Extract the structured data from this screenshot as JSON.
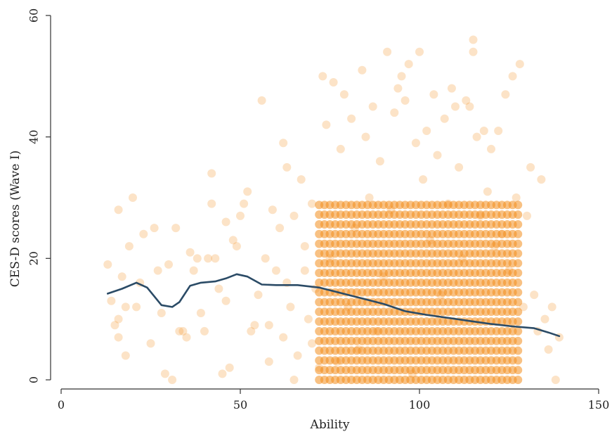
{
  "chart_data": {
    "type": "scatter",
    "title": "",
    "xlabel": "Ability",
    "ylabel": "CES-D scores (Wave I)",
    "xlim": [
      0,
      150
    ],
    "ylim": [
      0,
      60
    ],
    "x_ticks": [
      0,
      50,
      100,
      150
    ],
    "y_ticks": [
      0,
      20,
      40,
      60
    ],
    "grid": false,
    "legend": "none",
    "colors": {
      "points": "#f28e1e",
      "line": "#2b4b66",
      "axis": "#333333"
    },
    "series": [
      {
        "kind": "scatter",
        "points": [
          [
            13,
            19
          ],
          [
            14,
            13
          ],
          [
            15,
            9
          ],
          [
            16,
            28
          ],
          [
            16,
            7
          ],
          [
            16,
            10
          ],
          [
            17,
            17
          ],
          [
            18,
            12
          ],
          [
            18,
            4
          ],
          [
            19,
            22
          ],
          [
            20,
            30
          ],
          [
            21,
            12
          ],
          [
            22,
            16
          ],
          [
            23,
            24
          ],
          [
            25,
            6
          ],
          [
            26,
            25
          ],
          [
            27,
            18
          ],
          [
            28,
            11
          ],
          [
            29,
            1
          ],
          [
            30,
            19
          ],
          [
            31,
            0
          ],
          [
            32,
            25
          ],
          [
            33,
            8
          ],
          [
            34,
            8
          ],
          [
            35,
            7
          ],
          [
            36,
            21
          ],
          [
            37,
            18
          ],
          [
            38,
            20
          ],
          [
            39,
            11
          ],
          [
            40,
            8
          ],
          [
            41,
            20
          ],
          [
            42,
            34
          ],
          [
            42,
            29
          ],
          [
            43,
            20
          ],
          [
            44,
            15
          ],
          [
            45,
            1
          ],
          [
            46,
            26
          ],
          [
            46,
            13
          ],
          [
            47,
            2
          ],
          [
            48,
            23
          ],
          [
            49,
            22
          ],
          [
            50,
            27
          ],
          [
            51,
            29
          ],
          [
            52,
            31
          ],
          [
            53,
            8
          ],
          [
            54,
            9
          ],
          [
            55,
            14
          ],
          [
            56,
            46
          ],
          [
            57,
            20
          ],
          [
            58,
            9
          ],
          [
            58,
            3
          ],
          [
            59,
            28
          ],
          [
            60,
            18
          ],
          [
            61,
            25
          ],
          [
            62,
            7
          ],
          [
            62,
            39
          ],
          [
            63,
            35
          ],
          [
            63,
            16
          ],
          [
            64,
            12
          ],
          [
            65,
            27
          ],
          [
            65,
            0
          ],
          [
            66,
            4
          ],
          [
            67,
            33
          ],
          [
            68,
            18
          ],
          [
            68,
            22
          ],
          [
            69,
            10
          ],
          [
            70,
            6
          ],
          [
            70,
            29
          ],
          [
            71,
            15
          ],
          [
            72,
            2
          ],
          [
            73,
            50
          ],
          [
            74,
            42
          ],
          [
            75,
            20
          ],
          [
            76,
            49
          ],
          [
            77,
            3
          ],
          [
            78,
            38
          ],
          [
            79,
            47
          ],
          [
            80,
            12
          ],
          [
            81,
            43
          ],
          [
            82,
            25
          ],
          [
            83,
            5
          ],
          [
            84,
            51
          ],
          [
            85,
            40
          ],
          [
            86,
            30
          ],
          [
            87,
            45
          ],
          [
            88,
            8
          ],
          [
            89,
            36
          ],
          [
            90,
            17
          ],
          [
            91,
            54
          ],
          [
            92,
            28
          ],
          [
            93,
            44
          ],
          [
            94,
            48
          ],
          [
            95,
            50
          ],
          [
            96,
            46
          ],
          [
            97,
            52
          ],
          [
            98,
            1
          ],
          [
            99,
            39
          ],
          [
            100,
            54
          ],
          [
            101,
            33
          ],
          [
            102,
            41
          ],
          [
            103,
            23
          ],
          [
            104,
            47
          ],
          [
            105,
            37
          ],
          [
            106,
            14
          ],
          [
            107,
            43
          ],
          [
            108,
            29
          ],
          [
            109,
            48
          ],
          [
            110,
            45
          ],
          [
            111,
            35
          ],
          [
            112,
            20
          ],
          [
            113,
            46
          ],
          [
            114,
            45
          ],
          [
            115,
            56
          ],
          [
            115,
            54
          ],
          [
            116,
            40
          ],
          [
            117,
            27
          ],
          [
            118,
            41
          ],
          [
            119,
            31
          ],
          [
            120,
            38
          ],
          [
            121,
            22
          ],
          [
            122,
            41
          ],
          [
            123,
            24
          ],
          [
            124,
            47
          ],
          [
            125,
            18
          ],
          [
            126,
            50
          ],
          [
            127,
            30
          ],
          [
            128,
            52
          ],
          [
            129,
            12
          ],
          [
            130,
            27
          ],
          [
            131,
            35
          ],
          [
            132,
            14
          ],
          [
            133,
            8
          ],
          [
            134,
            33
          ],
          [
            135,
            10
          ],
          [
            136,
            5
          ],
          [
            137,
            12
          ],
          [
            138,
            0
          ],
          [
            139,
            7
          ]
        ]
      },
      {
        "kind": "line",
        "points": [
          [
            13,
            14.2
          ],
          [
            17,
            15.0
          ],
          [
            21,
            16.0
          ],
          [
            24,
            15.2
          ],
          [
            28,
            12.3
          ],
          [
            31,
            12.0
          ],
          [
            33,
            12.8
          ],
          [
            36,
            15.5
          ],
          [
            39,
            16.0
          ],
          [
            43,
            16.2
          ],
          [
            46,
            16.7
          ],
          [
            49,
            17.4
          ],
          [
            52,
            17.0
          ],
          [
            56,
            15.7
          ],
          [
            60,
            15.6
          ],
          [
            66,
            15.6
          ],
          [
            72,
            15.2
          ],
          [
            78,
            14.3
          ],
          [
            84,
            13.4
          ],
          [
            90,
            12.5
          ],
          [
            96,
            11.3
          ],
          [
            102,
            10.7
          ],
          [
            108,
            10.2
          ],
          [
            114,
            9.7
          ],
          [
            120,
            9.2
          ],
          [
            126,
            8.8
          ],
          [
            132,
            8.5
          ],
          [
            136,
            7.8
          ],
          [
            139,
            7.2
          ]
        ]
      }
    ]
  }
}
